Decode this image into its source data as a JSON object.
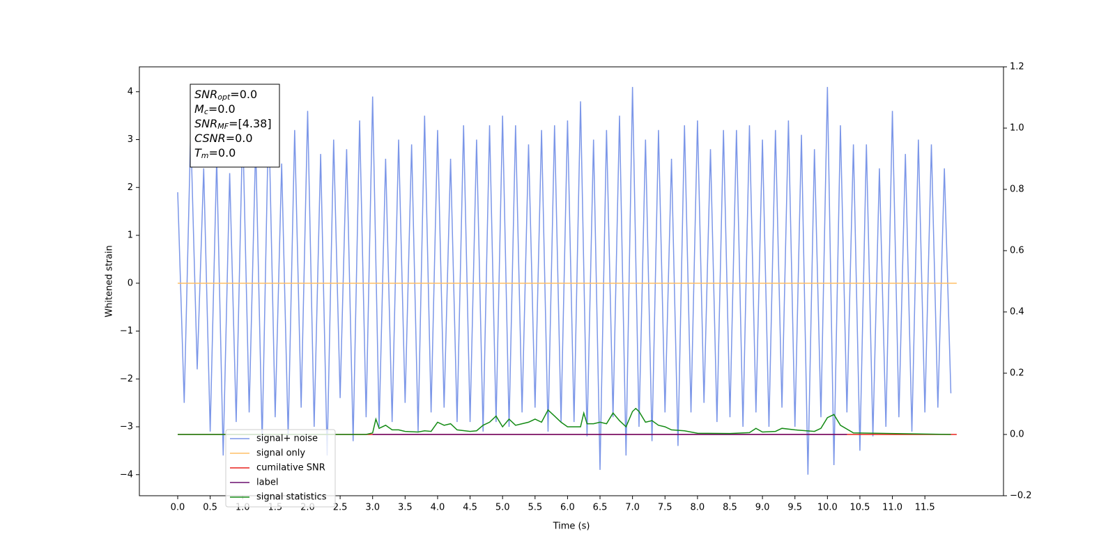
{
  "chart_data": {
    "type": "line",
    "xlabel": "Time (s)",
    "ylabel": "Whitened strain",
    "xlim": [
      -0.59,
      12.71
    ],
    "ylim": [
      -4.44,
      4.52
    ],
    "y2lim": [
      -0.2,
      1.2
    ],
    "xticks": [
      {
        "value": 0,
        "label": "0.0"
      },
      0.5,
      {
        "value": 1,
        "label": "1.0"
      },
      1.5,
      {
        "value": 2,
        "label": "2.0"
      },
      2.5,
      {
        "value": 3,
        "label": "3.0"
      },
      3.5,
      {
        "value": 4,
        "label": "4.0"
      },
      4.5,
      {
        "value": 5,
        "label": "5.0"
      },
      5.5,
      {
        "value": 6,
        "label": "6.0"
      },
      6.5,
      {
        "value": 7,
        "label": "7.0"
      },
      7.5,
      {
        "value": 8,
        "label": "8.0"
      },
      8.5,
      {
        "value": 9,
        "label": "9.0"
      },
      9.5,
      {
        "value": 10,
        "label": "10.0"
      },
      10.5,
      {
        "value": 11,
        "label": "11.0"
      },
      11.5
    ],
    "yticks": [
      {
        "value": -4,
        "label": "−4"
      },
      {
        "value": -3,
        "label": "−3"
      },
      {
        "value": -2,
        "label": "−2"
      },
      {
        "value": -1,
        "label": "−1"
      },
      0,
      1,
      2,
      3,
      4
    ],
    "y2ticks": [
      {
        "value": -0.2,
        "label": "−0.2"
      },
      {
        "value": 0,
        "label": "0.0"
      },
      0.2,
      0.4,
      0.6,
      0.8,
      {
        "value": 1,
        "label": "1.0"
      },
      1.2
    ],
    "legend": "lower left",
    "annotation": [
      {
        "symbol": "SNR",
        "sub": "opt",
        "text": "=0.0"
      },
      {
        "symbol": "M",
        "sub": "c",
        "text": "=0.0"
      },
      {
        "symbol": "SNR",
        "sub": "MF",
        "text": "=[4.38]"
      },
      {
        "symbol": "CSNR",
        "sub": "",
        "text": "=0.0"
      },
      {
        "symbol": "T",
        "sub": "m",
        "text": "=0.0"
      }
    ],
    "series": [
      {
        "name": "signal+ noise",
        "color": "#7b96e8",
        "axis": "y",
        "x": [
          0,
          0.1,
          0.2,
          0.3,
          0.4,
          0.5,
          0.6,
          0.7,
          0.8,
          0.9,
          1,
          1.1,
          1.2,
          1.3,
          1.4,
          1.5,
          1.6,
          1.7,
          1.8,
          1.9,
          2,
          2.1,
          2.2,
          2.3,
          2.4,
          2.5,
          2.6,
          2.7,
          2.8,
          2.9,
          3,
          3.1,
          3.2,
          3.3,
          3.4,
          3.5,
          3.6,
          3.7,
          3.8,
          3.9,
          4,
          4.1,
          4.2,
          4.3,
          4.4,
          4.5,
          4.6,
          4.7,
          4.8,
          4.9,
          5,
          5.1,
          5.2,
          5.3,
          5.4,
          5.5,
          5.6,
          5.7,
          5.8,
          5.9,
          6,
          6.1,
          6.2,
          6.3,
          6.4,
          6.5,
          6.6,
          6.7,
          6.8,
          6.9,
          7,
          7.1,
          7.2,
          7.3,
          7.4,
          7.5,
          7.6,
          7.7,
          7.8,
          7.9,
          8,
          8.1,
          8.2,
          8.3,
          8.4,
          8.5,
          8.6,
          8.7,
          8.8,
          8.9,
          9,
          9.1,
          9.2,
          9.3,
          9.4,
          9.5,
          9.6,
          9.7,
          9.8,
          9.9,
          10,
          10.1,
          10.2,
          10.3,
          10.4,
          10.5,
          10.6,
          10.7,
          10.8,
          10.9,
          11,
          11.1,
          11.2,
          11.3,
          11.4,
          11.5,
          11.6,
          11.7,
          11.8,
          11.9
        ],
        "values": [
          1.9,
          -2.5,
          3.2,
          -1.8,
          2.4,
          -3.1,
          2.6,
          -3.6,
          2.3,
          -2.9,
          3.3,
          -2.7,
          2.9,
          -3.3,
          3.6,
          -2.8,
          2.5,
          -3.2,
          3.2,
          -2.6,
          3.6,
          -3.0,
          2.7,
          -3.6,
          3.0,
          -2.4,
          2.8,
          -3.3,
          3.4,
          -2.8,
          3.9,
          -3.0,
          2.6,
          -2.9,
          3.0,
          -2.5,
          2.9,
          -3.1,
          3.5,
          -2.7,
          3.2,
          -2.6,
          2.6,
          -2.9,
          3.3,
          -2.9,
          3.0,
          -3.1,
          3.3,
          -2.9,
          3.5,
          -3.0,
          3.3,
          -2.7,
          2.9,
          -2.6,
          3.2,
          -3.1,
          3.3,
          -2.9,
          3.4,
          -2.9,
          3.8,
          -3.2,
          3.0,
          -3.9,
          3.2,
          -2.8,
          3.5,
          -3.6,
          4.1,
          -3.0,
          3.0,
          -3.3,
          3.2,
          -2.7,
          2.6,
          -3.4,
          3.3,
          -2.7,
          3.4,
          -2.5,
          2.8,
          -2.9,
          3.2,
          -2.8,
          3.2,
          -3.0,
          3.3,
          -2.7,
          3.0,
          -3.0,
          3.2,
          -2.6,
          3.4,
          -3.0,
          3.1,
          -4.0,
          2.8,
          -2.8,
          4.1,
          -3.8,
          3.3,
          -2.7,
          2.9,
          -3.5,
          2.9,
          -3.2,
          2.4,
          -3.0,
          3.6,
          -2.8,
          2.7,
          -3.1,
          3.0,
          -2.7,
          2.9,
          -2.6,
          2.4,
          -2.3
        ]
      },
      {
        "name": "signal only",
        "color": "#ffbf66",
        "axis": "y",
        "x": [
          0,
          11.99
        ],
        "values": [
          0,
          0
        ]
      },
      {
        "name": "cumilative SNR",
        "color": "#e8211c",
        "axis": "y2",
        "x": [
          0,
          11.99
        ],
        "values": [
          0,
          0
        ]
      },
      {
        "name": "label",
        "color": "#6a0d6e",
        "axis": "y2",
        "x": [
          3.0,
          10.3
        ],
        "values": [
          0,
          0
        ]
      },
      {
        "name": "signal statistics",
        "color": "#138a13",
        "axis": "y2",
        "x": [
          0,
          2.9,
          3.0,
          3.05,
          3.1,
          3.2,
          3.3,
          3.4,
          3.5,
          3.7,
          3.8,
          3.9,
          4.0,
          4.1,
          4.2,
          4.3,
          4.5,
          4.6,
          4.7,
          4.8,
          4.9,
          5.0,
          5.1,
          5.2,
          5.3,
          5.4,
          5.5,
          5.6,
          5.7,
          5.8,
          5.9,
          6.0,
          6.1,
          6.2,
          6.25,
          6.3,
          6.4,
          6.5,
          6.6,
          6.7,
          6.8,
          6.9,
          7.0,
          7.05,
          7.1,
          7.2,
          7.3,
          7.4,
          7.5,
          7.6,
          7.8,
          8.0,
          8.5,
          8.8,
          8.9,
          9.0,
          9.2,
          9.3,
          9.5,
          9.8,
          9.9,
          10.0,
          10.1,
          10.2,
          10.4,
          11.9
        ],
        "values": [
          0,
          0,
          0.005,
          0.05,
          0.02,
          0.03,
          0.015,
          0.015,
          0.01,
          0.008,
          0.012,
          0.01,
          0.04,
          0.03,
          0.035,
          0.015,
          0.01,
          0.012,
          0.03,
          0.04,
          0.06,
          0.025,
          0.05,
          0.03,
          0.035,
          0.04,
          0.05,
          0.04,
          0.08,
          0.06,
          0.04,
          0.025,
          0.025,
          0.025,
          0.07,
          0.035,
          0.035,
          0.04,
          0.035,
          0.07,
          0.045,
          0.025,
          0.075,
          0.085,
          0.075,
          0.04,
          0.045,
          0.03,
          0.025,
          0.015,
          0.012,
          0.004,
          0.003,
          0.006,
          0.02,
          0.008,
          0.01,
          0.02,
          0.015,
          0.01,
          0.02,
          0.055,
          0.065,
          0.03,
          0.005,
          0
        ]
      }
    ]
  }
}
